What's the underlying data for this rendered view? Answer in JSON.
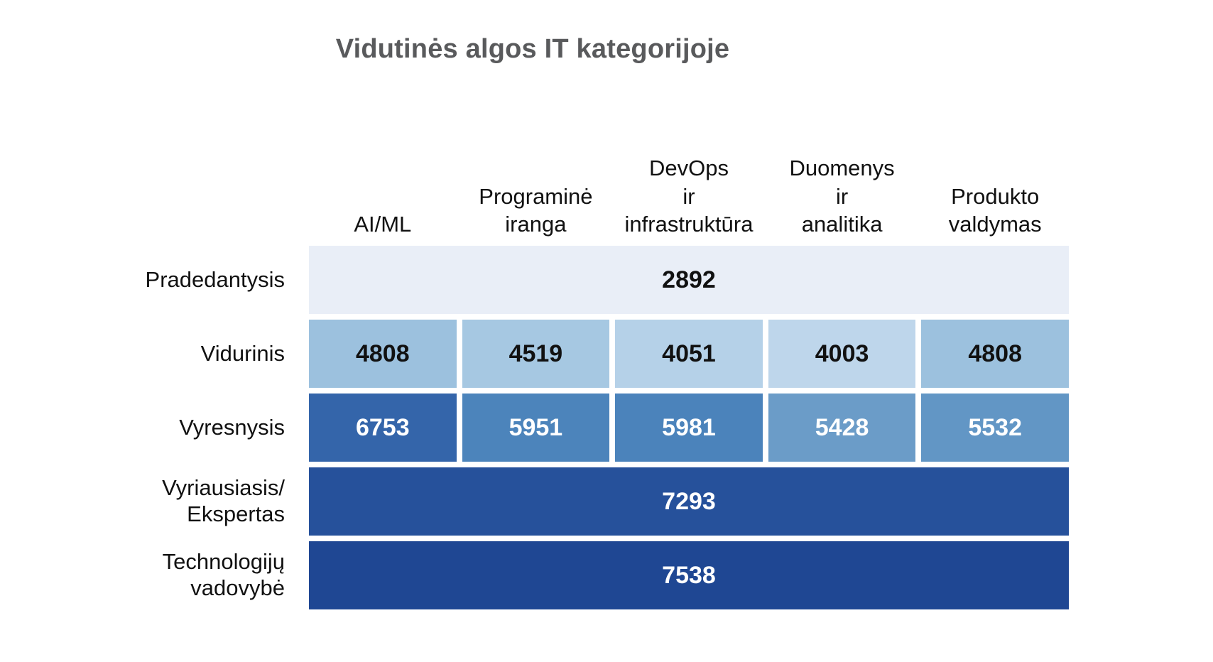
{
  "title": "Vidutinės algos IT kategorijoje",
  "chart_data": {
    "type": "heatmap",
    "title": "Vidutinės algos IT kategorijoje",
    "xlabel": "",
    "ylabel": "",
    "legend": "none",
    "grid": "off",
    "columns": [
      "AI/ML",
      "Programinė iranga",
      "DevOps ir infrastruktūra",
      "Duomenys ir analitika",
      "Produkto valdymas"
    ],
    "column_display": [
      "AI/ML",
      "Programinė\niranga",
      "DevOps\nir\ninfrastruktūra",
      "Duomenys\nir\nanalitika",
      "Produkto\nvaldymas"
    ],
    "row_categories": [
      "Pradedantysis",
      "Vidurinis",
      "Vyresnysis",
      "Vyriausiasis/Ekspertas",
      "Technologijų vadovybė"
    ],
    "value_range": [
      2892,
      7538
    ],
    "colorscale": "Blues (light = low salary, dark = high salary)",
    "rows": [
      {
        "label": "Pradedantysis",
        "merged": true,
        "value": 2892,
        "bg": "#e9eef7",
        "text_color": "#111111"
      },
      {
        "label": "Vidurinis",
        "merged": false,
        "values": [
          4808,
          4519,
          4051,
          4003,
          4808
        ],
        "cell_colors": [
          "#9cc1de",
          "#a6c8e2",
          "#b5d1e8",
          "#bed6eb",
          "#9cc1de"
        ],
        "text_color": "#111111"
      },
      {
        "label": "Vyresnysis",
        "merged": false,
        "values": [
          6753,
          5951,
          5981,
          5428,
          5532
        ],
        "cell_colors": [
          "#3465aa",
          "#4c84bb",
          "#4b83bb",
          "#6b9cc8",
          "#6296c5"
        ],
        "text_color": "#ffffff"
      },
      {
        "label": "Vyriausiasis/\nEkspertas",
        "merged": true,
        "value": 7293,
        "bg": "#26519b",
        "text_color": "#ffffff"
      },
      {
        "label": "Technologijų\nvadovybė",
        "merged": true,
        "value": 7538,
        "bg": "#1f4793",
        "text_color": "#ffffff"
      }
    ]
  }
}
